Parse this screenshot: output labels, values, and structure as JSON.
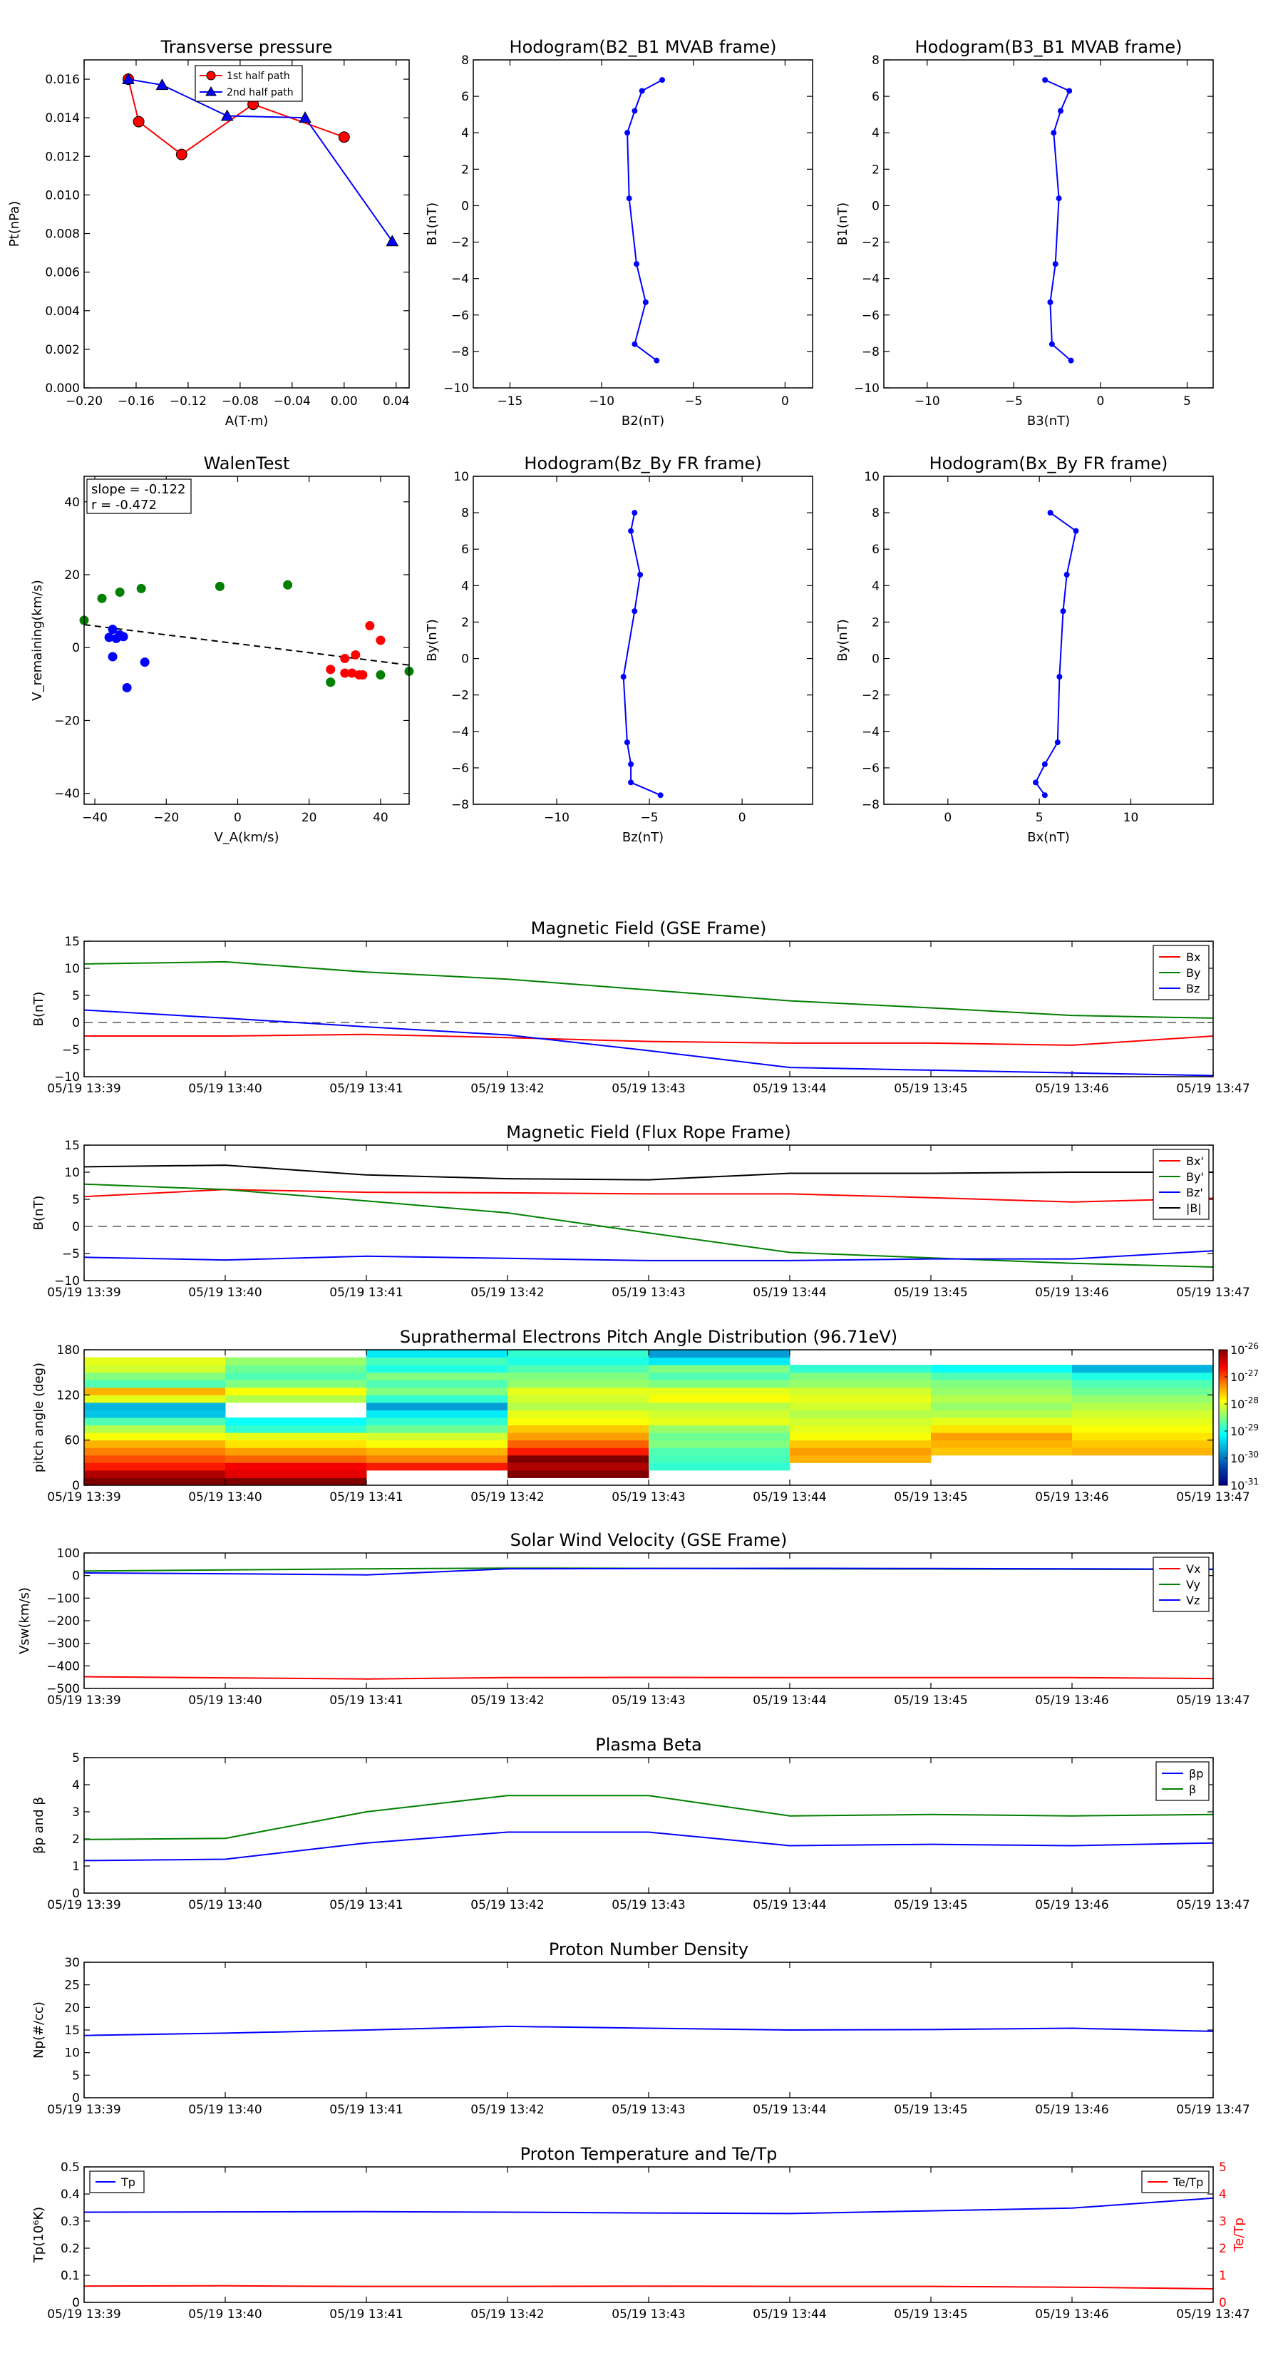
{
  "times": [
    "05/19 13:39",
    "05/19 13:40",
    "05/19 13:41",
    "05/19 13:42",
    "05/19 13:43",
    "05/19 13:44",
    "05/19 13:45",
    "05/19 13:46",
    "05/19 13:47"
  ],
  "chart_data": [
    {
      "id": "pt",
      "type": "line",
      "title": "Transverse pressure",
      "xlabel": "A(T·m)",
      "ylabel": "Pt(nPa)",
      "xlim": [
        -0.2,
        0.05
      ],
      "ylim": [
        0,
        0.017
      ],
      "xticks": [
        -0.2,
        -0.16,
        -0.12,
        -0.08,
        -0.04,
        0.0,
        0.04
      ],
      "xtick_labels": [
        "−0.20",
        "−0.16",
        "−0.12",
        "−0.08",
        "−0.04",
        "0.00",
        "0.04"
      ],
      "yticks": [
        0,
        0.002,
        0.004,
        0.006,
        0.008,
        0.01,
        0.012,
        0.014,
        0.016
      ],
      "ytick_labels": [
        "0.000",
        "0.002",
        "0.004",
        "0.006",
        "0.008",
        "0.010",
        "0.012",
        "0.014",
        "0.016"
      ],
      "legend": "top-center",
      "series": [
        {
          "name": "1st half path",
          "color": "#ff0000",
          "marker": "circle",
          "x": [
            0.0,
            -0.07,
            -0.125,
            -0.158,
            -0.166
          ],
          "y": [
            0.013,
            0.0147,
            0.0121,
            0.0138,
            0.016
          ]
        },
        {
          "name": "2nd half path",
          "color": "#0000ff",
          "marker": "triangle",
          "x": [
            -0.166,
            -0.14,
            -0.09,
            -0.03,
            0.037
          ],
          "y": [
            0.016,
            0.0157,
            0.0141,
            0.014,
            0.0076
          ]
        }
      ]
    },
    {
      "id": "h1",
      "type": "line",
      "title": "Hodogram(B2_B1 MVAB frame)",
      "xlabel": "B2(nT)",
      "ylabel": "B1(nT)",
      "xlim": [
        -17,
        1.5
      ],
      "ylim": [
        -10,
        8
      ],
      "xticks": [
        -15,
        -10,
        -5,
        0
      ],
      "xtick_labels": [
        "−15",
        "−10",
        "−5",
        "0"
      ],
      "yticks": [
        -10,
        -8,
        -6,
        -4,
        -2,
        0,
        2,
        4,
        6,
        8
      ],
      "ytick_labels": [
        "−10",
        "−8",
        "−6",
        "−4",
        "−2",
        "0",
        "2",
        "4",
        "6",
        "8"
      ],
      "series": [
        {
          "name": "",
          "color": "#0000ff",
          "x": [
            -6.7,
            -7.8,
            -8.2,
            -8.6,
            -8.5,
            -8.1,
            -7.6,
            -8.2,
            -7.0
          ],
          "y": [
            6.9,
            6.3,
            5.2,
            4.0,
            0.4,
            -3.2,
            -5.3,
            -7.6,
            -8.5
          ]
        }
      ]
    },
    {
      "id": "h2",
      "type": "line",
      "title": "Hodogram(B3_B1 MVAB frame)",
      "xlabel": "B3(nT)",
      "ylabel": "B1(nT)",
      "xlim": [
        -12.5,
        6.5
      ],
      "ylim": [
        -10,
        8
      ],
      "xticks": [
        -10,
        -5,
        0,
        5
      ],
      "xtick_labels": [
        "−10",
        "−5",
        "0",
        "5"
      ],
      "yticks": [
        -10,
        -8,
        -6,
        -4,
        -2,
        0,
        2,
        4,
        6,
        8
      ],
      "ytick_labels": [
        "−10",
        "−8",
        "−6",
        "−4",
        "−2",
        "0",
        "2",
        "4",
        "6",
        "8"
      ],
      "series": [
        {
          "name": "",
          "color": "#0000ff",
          "x": [
            -3.2,
            -1.8,
            -2.3,
            -2.7,
            -2.4,
            -2.6,
            -2.9,
            -2.8,
            -1.7
          ],
          "y": [
            6.9,
            6.3,
            5.2,
            4.0,
            0.4,
            -3.2,
            -5.3,
            -7.6,
            -8.5
          ]
        }
      ]
    },
    {
      "id": "walen",
      "type": "scatter",
      "title": "WalenTest",
      "xlabel": "V_A(km/s)",
      "ylabel": "V_remaining(km/s)",
      "xlim": [
        -43,
        48
      ],
      "ylim": [
        -43,
        47
      ],
      "xticks": [
        -40,
        -20,
        0,
        20,
        40
      ],
      "xtick_labels": [
        "−40",
        "−20",
        "0",
        "20",
        "40"
      ],
      "yticks": [
        -40,
        -20,
        0,
        20,
        40
      ],
      "ytick_labels": [
        "−40",
        "−20",
        "0",
        "20",
        "40"
      ],
      "annotation": [
        "slope = -0.122",
        "r = -0.472"
      ],
      "fit_line": {
        "color": "#000000",
        "style": "dashed",
        "x": [
          -43,
          48
        ],
        "y": [
          6.3,
          -4.8
        ]
      },
      "series": [
        {
          "name": "",
          "color": "#008000",
          "x": [
            -43,
            -38,
            -33,
            -27,
            -5,
            14,
            26,
            40,
            48,
            26
          ],
          "y": [
            7.5,
            13.5,
            15.2,
            16.2,
            16.8,
            17.2,
            -9.5,
            -7.5,
            -6.5,
            -9.5
          ]
        },
        {
          "name": "",
          "color": "#0000ff",
          "x": [
            -35,
            -34,
            -33,
            -36,
            -35,
            -32,
            -31,
            -26
          ],
          "y": [
            5.0,
            2.5,
            3.5,
            2.8,
            -2.5,
            3.0,
            -11.0,
            -4.0
          ]
        },
        {
          "name": "",
          "color": "#ff0000",
          "x": [
            26,
            30,
            32,
            33,
            34,
            35,
            37,
            40,
            30
          ],
          "y": [
            -6.0,
            -3.0,
            -7.0,
            -2.0,
            -7.5,
            -7.5,
            6.0,
            2.0,
            -7.0
          ]
        }
      ]
    },
    {
      "id": "h3",
      "type": "line",
      "title": "Hodogram(Bz_By FR frame)",
      "xlabel": "Bz(nT)",
      "ylabel": "By(nT)",
      "xlim": [
        -14.5,
        3.8
      ],
      "ylim": [
        -8,
        10
      ],
      "xticks": [
        -10,
        -5,
        0
      ],
      "xtick_labels": [
        "−10",
        "−5",
        "0"
      ],
      "yticks": [
        -8,
        -6,
        -4,
        -2,
        0,
        2,
        4,
        6,
        8,
        10
      ],
      "ytick_labels": [
        "−8",
        "−6",
        "−4",
        "−2",
        "0",
        "2",
        "4",
        "6",
        "8",
        "10"
      ],
      "series": [
        {
          "name": "",
          "color": "#0000ff",
          "x": [
            -5.8,
            -6.0,
            -5.5,
            -5.8,
            -6.4,
            -6.2,
            -6.0,
            -6.0,
            -4.4
          ],
          "y": [
            8.0,
            7.0,
            4.6,
            2.6,
            -1.0,
            -4.6,
            -5.8,
            -6.8,
            -7.5
          ]
        }
      ]
    },
    {
      "id": "h4",
      "type": "line",
      "title": "Hodogram(Bx_By FR frame)",
      "xlabel": "Bx(nT)",
      "ylabel": "By(nT)",
      "xlim": [
        -3.5,
        14.5
      ],
      "ylim": [
        -8,
        10
      ],
      "xticks": [
        0,
        5,
        10
      ],
      "xtick_labels": [
        "0",
        "5",
        "10"
      ],
      "yticks": [
        -8,
        -6,
        -4,
        -2,
        0,
        2,
        4,
        6,
        8,
        10
      ],
      "ytick_labels": [
        "−8",
        "−6",
        "−4",
        "−2",
        "0",
        "2",
        "4",
        "6",
        "8",
        "10"
      ],
      "series": [
        {
          "name": "",
          "color": "#0000ff",
          "x": [
            5.6,
            7.0,
            6.5,
            6.3,
            6.1,
            6.0,
            5.3,
            4.8,
            5.3
          ],
          "y": [
            8.0,
            7.0,
            4.6,
            2.6,
            -1.0,
            -4.6,
            -5.8,
            -6.8,
            -7.5
          ]
        }
      ]
    },
    {
      "id": "bgse",
      "type": "line",
      "title": "Magnetic Field (GSE Frame)",
      "xlabel": "",
      "ylabel": "B(nT)",
      "ylim": [
        -10,
        15
      ],
      "yticks": [
        -10,
        -5,
        0,
        5,
        10,
        15
      ],
      "ytick_labels": [
        "−10",
        "−5",
        "0",
        "5",
        "10",
        "15"
      ],
      "zero_line": true,
      "legend": "top-right",
      "series": [
        {
          "name": "Bx",
          "color": "#ff0000",
          "values": [
            -2.5,
            -2.5,
            -2.2,
            -2.8,
            -3.5,
            -3.8,
            -3.8,
            -4.2,
            -2.5
          ]
        },
        {
          "name": "By",
          "color": "#008000",
          "values": [
            10.8,
            11.2,
            9.3,
            8.0,
            6.0,
            4.0,
            2.7,
            1.3,
            0.8
          ]
        },
        {
          "name": "Bz",
          "color": "#0000ff",
          "values": [
            2.3,
            0.8,
            -0.8,
            -2.3,
            -5.2,
            -8.3,
            -8.8,
            -9.3,
            -9.8
          ]
        }
      ]
    },
    {
      "id": "bfr",
      "type": "line",
      "title": "Magnetic Field (Flux Rope Frame)",
      "xlabel": "",
      "ylabel": "B(nT)",
      "ylim": [
        -10,
        15
      ],
      "yticks": [
        -10,
        -5,
        0,
        5,
        10,
        15
      ],
      "ytick_labels": [
        "−10",
        "−5",
        "0",
        "5",
        "10",
        "15"
      ],
      "zero_line": true,
      "legend": "top-right",
      "series": [
        {
          "name": "Bx'",
          "color": "#ff0000",
          "values": [
            5.5,
            6.8,
            6.3,
            6.2,
            6.0,
            6.0,
            5.3,
            4.5,
            5.2
          ]
        },
        {
          "name": "By'",
          "color": "#008000",
          "values": [
            7.8,
            6.8,
            4.7,
            2.5,
            -1.2,
            -4.8,
            -5.8,
            -6.8,
            -7.5
          ]
        },
        {
          "name": "Bz'",
          "color": "#0000ff",
          "values": [
            -5.7,
            -6.2,
            -5.5,
            -5.9,
            -6.3,
            -6.3,
            -6.0,
            -6.0,
            -4.5
          ]
        },
        {
          "name": "|B|",
          "color": "#000000",
          "values": [
            11.0,
            11.3,
            9.5,
            8.8,
            8.6,
            9.8,
            9.8,
            10.0,
            10.0
          ]
        }
      ]
    },
    {
      "id": "pad",
      "type": "heatmap",
      "title": "Suprathermal Electrons Pitch Angle Distribution (96.71eV)",
      "xlabel": "",
      "ylabel": "pitch angle (deg)",
      "ylim": [
        0,
        180
      ],
      "yticks": [
        0,
        60,
        120,
        180
      ],
      "ytick_labels": [
        "0",
        "60",
        "120",
        "180"
      ],
      "colorbar": {
        "ticks_base": "10",
        "ticks_exp": [
          "-26",
          "-27",
          "-28",
          "-29",
          "-30",
          "-31"
        ]
      },
      "bins_per_column": 18,
      "columns": [
        [
          1.0,
          0.95,
          0.85,
          0.8,
          0.75,
          0.7,
          0.62,
          0.55,
          0.45,
          0.3,
          0.28,
          0.6,
          0.7,
          0.45,
          0.5,
          0.58,
          0.6,
          0.0
        ],
        [
          1.0,
          0.9,
          0.88,
          0.78,
          0.72,
          0.65,
          0.6,
          0.42,
          0.38,
          0.0,
          0.0,
          0.55,
          0.62,
          0.5,
          0.45,
          0.48,
          0.52,
          0.0
        ],
        [
          0.0,
          0.0,
          0.85,
          0.75,
          0.7,
          0.62,
          0.58,
          0.48,
          0.42,
          0.35,
          0.25,
          0.42,
          0.5,
          0.45,
          0.5,
          0.4,
          0.44,
          0.35
        ],
        [
          0.0,
          1.0,
          0.95,
          1.0,
          0.85,
          0.78,
          0.72,
          0.68,
          0.62,
          0.6,
          0.55,
          0.58,
          0.6,
          0.52,
          0.5,
          0.45,
          0.4,
          0.42
        ],
        [
          0.0,
          0.0,
          0.42,
          0.44,
          0.45,
          0.5,
          0.48,
          0.52,
          0.6,
          0.58,
          0.55,
          0.62,
          0.6,
          0.5,
          0.45,
          0.5,
          0.35,
          0.25
        ],
        [
          0.0,
          0.0,
          0.0,
          0.7,
          0.72,
          0.68,
          0.62,
          0.6,
          0.58,
          0.55,
          0.58,
          0.6,
          0.58,
          0.52,
          0.5,
          0.42,
          0.0,
          0.0
        ],
        [
          0.0,
          0.0,
          0.0,
          0.0,
          0.68,
          0.7,
          0.72,
          0.65,
          0.6,
          0.55,
          0.52,
          0.55,
          0.52,
          0.5,
          0.45,
          0.38,
          0.0,
          0.0
        ],
        [
          0.0,
          0.0,
          0.0,
          0.0,
          0.7,
          0.68,
          0.65,
          0.62,
          0.6,
          0.58,
          0.55,
          0.52,
          0.48,
          0.45,
          0.4,
          0.28,
          0.0,
          0.0
        ]
      ]
    },
    {
      "id": "vsw",
      "type": "line",
      "title": "Solar Wind Velocity (GSE Frame)",
      "xlabel": "",
      "ylabel": "Vsw(km/s)",
      "ylim": [
        -500,
        100
      ],
      "yticks": [
        -500,
        -400,
        -300,
        -200,
        -100,
        0,
        100
      ],
      "ytick_labels": [
        "−500",
        "−400",
        "−300",
        "−200",
        "−100",
        "0",
        "100"
      ],
      "legend": "top-right",
      "series": [
        {
          "name": "Vx",
          "color": "#ff0000",
          "values": [
            -448,
            -453,
            -458,
            -452,
            -451,
            -452,
            -452,
            -452,
            -456
          ]
        },
        {
          "name": "Vy",
          "color": "#008000",
          "values": [
            20,
            25,
            30,
            33,
            32,
            30,
            29,
            28,
            27
          ]
        },
        {
          "name": "Vz",
          "color": "#0000ff",
          "values": [
            12,
            8,
            3,
            30,
            31,
            32,
            31,
            30,
            28
          ]
        }
      ]
    },
    {
      "id": "beta",
      "type": "line",
      "title": "Plasma Beta",
      "xlabel": "",
      "ylabel": "βp and β",
      "ylim": [
        0,
        5
      ],
      "yticks": [
        0,
        1,
        2,
        3,
        4,
        5
      ],
      "ytick_labels": [
        "0",
        "1",
        "2",
        "3",
        "4",
        "5"
      ],
      "legend": "top-right",
      "series": [
        {
          "name": "βp",
          "color": "#0000ff",
          "values": [
            1.2,
            1.25,
            1.85,
            2.25,
            2.25,
            1.75,
            1.8,
            1.75,
            1.85
          ]
        },
        {
          "name": "β",
          "color": "#008000",
          "values": [
            1.98,
            2.02,
            3.0,
            3.6,
            3.6,
            2.85,
            2.9,
            2.85,
            2.9
          ]
        }
      ]
    },
    {
      "id": "np",
      "type": "line",
      "title": "Proton Number Density",
      "xlabel": "",
      "ylabel": "Np(#/cc)",
      "ylim": [
        0,
        30
      ],
      "yticks": [
        0,
        5,
        10,
        15,
        20,
        25,
        30
      ],
      "ytick_labels": [
        "0",
        "5",
        "10",
        "15",
        "20",
        "25",
        "30"
      ],
      "series": [
        {
          "name": "",
          "color": "#0000ff",
          "values": [
            13.8,
            14.3,
            15.0,
            15.8,
            15.4,
            15.0,
            15.1,
            15.4,
            14.7
          ]
        }
      ]
    },
    {
      "id": "tp",
      "type": "line",
      "title": "Proton Temperature and Te/Tp",
      "xlabel": "",
      "ylabel": "Tp(10⁶K)",
      "ylabel_right": "Te/Tp",
      "ylim": [
        0,
        0.5
      ],
      "ylim_right": [
        0,
        5
      ],
      "yticks": [
        0,
        0.1,
        0.2,
        0.3,
        0.4,
        0.5
      ],
      "ytick_labels": [
        "0",
        "0.1",
        "0.2",
        "0.3",
        "0.4",
        "0.5"
      ],
      "yticks_right": [
        0,
        1,
        2,
        3,
        4,
        5
      ],
      "ytick_labels_right": [
        "0",
        "1",
        "2",
        "3",
        "4",
        "5"
      ],
      "series": [
        {
          "name": "Tp",
          "color": "#0000ff",
          "axis": "left",
          "values": [
            0.333,
            0.334,
            0.335,
            0.333,
            0.33,
            0.328,
            0.338,
            0.348,
            0.385
          ]
        },
        {
          "name": "Te/Tp",
          "color": "#ff0000",
          "axis": "right",
          "values": [
            0.6,
            0.61,
            0.59,
            0.59,
            0.6,
            0.59,
            0.59,
            0.56,
            0.5
          ]
        }
      ]
    }
  ]
}
